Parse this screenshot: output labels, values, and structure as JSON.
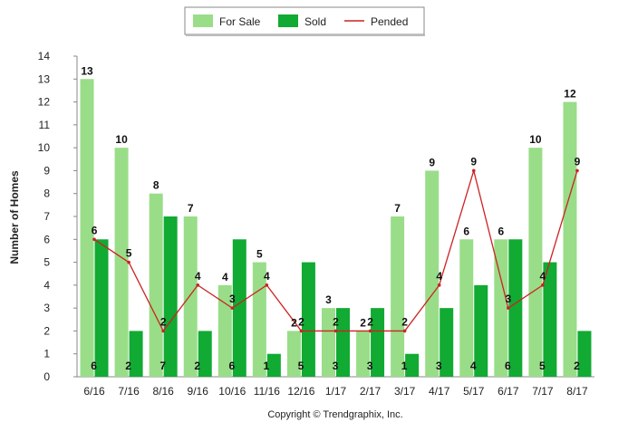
{
  "chart_data": {
    "type": "bar",
    "categories": [
      "6/16",
      "7/16",
      "8/16",
      "9/16",
      "10/16",
      "11/16",
      "12/16",
      "1/17",
      "2/17",
      "3/17",
      "4/17",
      "5/17",
      "6/17",
      "7/17",
      "8/17"
    ],
    "series": [
      {
        "name": "For Sale",
        "kind": "bar",
        "color": "#99dd88",
        "values": [
          13,
          10,
          8,
          7,
          4,
          5,
          2,
          3,
          2,
          7,
          9,
          6,
          6,
          10,
          12
        ]
      },
      {
        "name": "Sold",
        "kind": "bar",
        "color": "#11aa33",
        "values": [
          6,
          2,
          7,
          2,
          6,
          1,
          5,
          3,
          3,
          1,
          3,
          4,
          6,
          5,
          2
        ]
      },
      {
        "name": "Pended",
        "kind": "line",
        "color": "#cc2222",
        "values": [
          6,
          5,
          2,
          4,
          3,
          4,
          2,
          2,
          2,
          2,
          4,
          9,
          3,
          4,
          9
        ]
      }
    ],
    "ylabel": "Number of Homes",
    "xlabel": "",
    "ylim": [
      0,
      14
    ],
    "yticks": [
      "0",
      "1",
      "2",
      "3",
      "4",
      "5",
      "6",
      "7",
      "8",
      "9",
      "10",
      "11",
      "12",
      "13",
      "14"
    ],
    "grid": false,
    "legend_position": "top-center",
    "footer": "Copyright © Trendgraphix, Inc."
  }
}
